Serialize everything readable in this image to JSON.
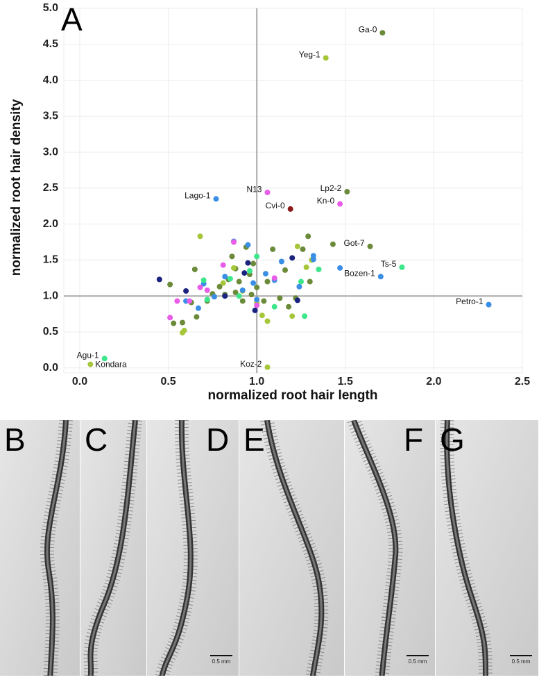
{
  "chart_data": {
    "type": "scatter",
    "panel_label": "A",
    "x_label": "normalized root hair length",
    "y_label": "normalized root hair density",
    "xlim": [
      -0.09,
      2.5
    ],
    "ylim": [
      -0.07,
      5.0
    ],
    "xticks": [
      {
        "value": 0,
        "label": "0.0"
      },
      0.5,
      {
        "value": 1,
        "label": "1.0"
      },
      1.5,
      {
        "value": 2,
        "label": "2.0"
      },
      2.5
    ],
    "yticks": [
      {
        "value": 0,
        "label": "0.0"
      },
      0.5,
      {
        "value": 1,
        "label": "1.0"
      },
      1.5,
      {
        "value": 2,
        "label": "2.0"
      },
      2.5,
      {
        "value": 3,
        "label": "3.0"
      },
      3.5,
      {
        "value": 4,
        "label": "4.0"
      },
      4.5,
      {
        "value": 5,
        "label": "5.0"
      }
    ],
    "grid": true,
    "vline": 1,
    "hline": 1,
    "series": [
      {
        "color": "#6b8a3a",
        "x": [
          1.71,
          1.51,
          1.64,
          0.51,
          0.53,
          0.58,
          0.65,
          0.63,
          0.66,
          0.72,
          0.75,
          0.79,
          0.82,
          0.84,
          0.86,
          0.88,
          0.9,
          0.92,
          0.94,
          0.96,
          0.97,
          1.0,
          1.04,
          1.09,
          1.13,
          1.16,
          1.18,
          1.22,
          1.26,
          1.29,
          1.43,
          1.3,
          0.88,
          0.98,
          1.06
        ],
        "values": [
          4.66,
          2.45,
          1.69,
          1.16,
          0.62,
          0.63,
          1.37,
          0.91,
          0.71,
          0.93,
          1.03,
          1.13,
          1.02,
          1.23,
          1.55,
          1.05,
          1.2,
          0.93,
          1.68,
          1.3,
          1.02,
          1.12,
          0.93,
          1.65,
          0.97,
          1.36,
          0.85,
          0.97,
          1.65,
          1.83,
          1.72,
          1.2,
          1.38,
          1.45,
          1.2
        ],
        "labels": [
          "Ga-0",
          "Lp2-2",
          "Got-7",
          null,
          null,
          null,
          null,
          null,
          null,
          null,
          null,
          null,
          null,
          null,
          null,
          null,
          null,
          null,
          null,
          null,
          null,
          null,
          null,
          null,
          null,
          null,
          null,
          null,
          null,
          null,
          null,
          null,
          null,
          null,
          null
        ]
      },
      {
        "color": "#a6c63a",
        "x": [
          1.39,
          0.06,
          1.06,
          0.58,
          0.59,
          0.68,
          0.81,
          0.87,
          0.92,
          1.03,
          1.06,
          1.2,
          1.23,
          1.31,
          1.28,
          1.0
        ],
        "values": [
          4.31,
          0.05,
          0.01,
          0.49,
          0.52,
          1.83,
          1.18,
          1.39,
          1.07,
          0.73,
          0.65,
          0.72,
          1.69,
          1.5,
          1.4,
          0.9
        ],
        "labels": [
          "Yeg-1",
          "Kondara",
          "Koz-2",
          null,
          null,
          null,
          null,
          null,
          null,
          null,
          null,
          null,
          null,
          null,
          null,
          null
        ]
      },
      {
        "color": "#3a8ee6",
        "x": [
          0.77,
          1.7,
          2.31,
          0.6,
          0.67,
          0.7,
          0.76,
          0.82,
          0.87,
          0.92,
          0.95,
          1.0,
          1.05,
          1.1,
          1.14,
          1.24,
          1.32,
          1.32,
          1.47,
          0.98
        ],
        "values": [
          2.35,
          1.27,
          0.88,
          0.93,
          0.83,
          1.17,
          0.99,
          1.27,
          1.76,
          1.08,
          1.71,
          0.95,
          1.31,
          1.22,
          1.48,
          1.13,
          1.56,
          1.51,
          1.39,
          1.18
        ],
        "labels": [
          "Lago-1",
          "Bozen-1",
          "Petro-1",
          null,
          null,
          null,
          null,
          null,
          null,
          null,
          null,
          null,
          null,
          null,
          null,
          null,
          null,
          null,
          null,
          null
        ]
      },
      {
        "color": "#e85ce8",
        "x": [
          1.06,
          1.47,
          0.51,
          0.55,
          0.62,
          0.68,
          0.72,
          0.81,
          0.87,
          1.0,
          1.1
        ],
        "values": [
          2.44,
          2.28,
          0.7,
          0.93,
          0.93,
          1.12,
          1.08,
          1.43,
          1.75,
          0.87,
          1.25
        ],
        "labels": [
          "N13",
          "Kn-0",
          null,
          null,
          null,
          null,
          null,
          null,
          null,
          null,
          null
        ]
      },
      {
        "color": "#8b1a1a",
        "x": [
          1.19
        ],
        "values": [
          2.21
        ],
        "labels": [
          "Cvi-0"
        ]
      },
      {
        "color": "#1a237e",
        "x": [
          0.45,
          0.6,
          0.82,
          0.95,
          0.99,
          1.2,
          1.23,
          0.93
        ],
        "values": [
          1.23,
          1.07,
          1.0,
          1.46,
          0.8,
          1.53,
          0.94,
          1.32
        ],
        "labels": [
          null,
          null,
          null,
          null,
          null,
          null,
          null,
          null
        ]
      },
      {
        "color": "#3ce68a",
        "x": [
          1.82,
          0.14,
          0.7,
          0.72,
          0.85,
          0.9,
          0.96,
          1.0,
          1.1,
          1.27,
          1.35,
          1.25
        ],
        "values": [
          1.4,
          0.13,
          1.22,
          0.95,
          1.24,
          1.0,
          1.35,
          1.55,
          0.85,
          0.72,
          1.37,
          1.2
        ],
        "labels": [
          "Ts-5",
          "Agu-1",
          null,
          null,
          null,
          null,
          null,
          null,
          null,
          null,
          null,
          null
        ]
      }
    ]
  },
  "micrographs": [
    {
      "label": "B"
    },
    {
      "label": "C"
    },
    {
      "label": "D",
      "scale_bar": "0.5 mm"
    },
    {
      "label": "E"
    },
    {
      "label": "F",
      "scale_bar": "0.5 mm"
    },
    {
      "label": "G",
      "scale_bar": "0.5 mm"
    }
  ]
}
